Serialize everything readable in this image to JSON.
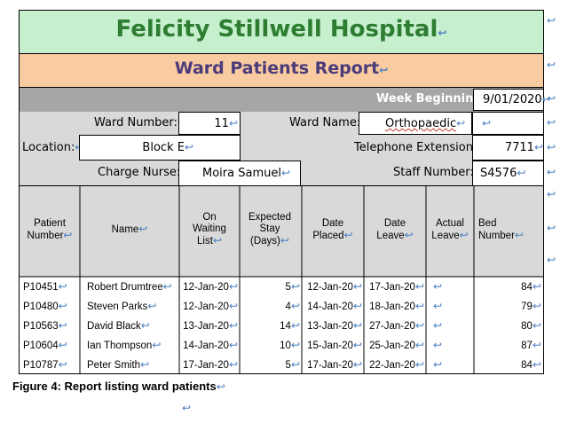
{
  "header": {
    "hospital_name": "Felicity Stillwell Hospital",
    "report_title": "Ward Patients Report",
    "week_label": "Week Beginning:",
    "week_value": "9/01/2020"
  },
  "ward": {
    "number_label": "Ward Number:",
    "number_value": "11",
    "name_label": "Ward Name:",
    "name_value": "Orthopaedic",
    "location_label": "Location:",
    "location_value": "Block E",
    "phone_label": "Telephone Extension:",
    "phone_value": "7711",
    "nurse_label": "Charge Nurse:",
    "nurse_value": "Moira Samuel",
    "staff_label": "Staff Number:",
    "staff_value": "S4576"
  },
  "table": {
    "columns": [
      "Patient Number",
      "Name",
      "On Waiting List",
      "Expected Stay (Days)",
      "Date Placed",
      "Date Leave",
      "Actual Leave",
      "Bed Number"
    ],
    "rows": [
      {
        "number": "P10451",
        "name": "Robert Drumtree",
        "waiting": "12-Jan-20",
        "stay": "5",
        "placed": "12-Jan-20",
        "leave": "17-Jan-20",
        "actual": "",
        "bed": "84"
      },
      {
        "number": "P10480",
        "name": "Steven Parks",
        "waiting": "12-Jan-20",
        "stay": "4",
        "placed": "14-Jan-20",
        "leave": "18-Jan-20",
        "actual": "",
        "bed": "79"
      },
      {
        "number": "P10563",
        "name": "David Black",
        "waiting": "13-Jan-20",
        "stay": "14",
        "placed": "13-Jan-20",
        "leave": "27-Jan-20",
        "actual": "",
        "bed": "80"
      },
      {
        "number": "P10604",
        "name": "Ian Thompson",
        "waiting": "14-Jan-20",
        "stay": "10",
        "placed": "15-Jan-20",
        "leave": "25-Jan-20",
        "actual": "",
        "bed": "87"
      },
      {
        "number": "P10787",
        "name": "Peter Smith",
        "waiting": "17-Jan-20",
        "stay": "5",
        "placed": "17-Jan-20",
        "leave": "22-Jan-20",
        "actual": "",
        "bed": "84"
      }
    ]
  },
  "caption": "Figure 4: Report listing ward patients",
  "colors": {
    "title_band": "#c6efce",
    "title_text": "#2e7d32",
    "subtitle_band": "#f8cba1",
    "subtitle_text": "#4b3b7a",
    "label_band": "#d9d9d9",
    "week_band": "#a6a6a6"
  }
}
